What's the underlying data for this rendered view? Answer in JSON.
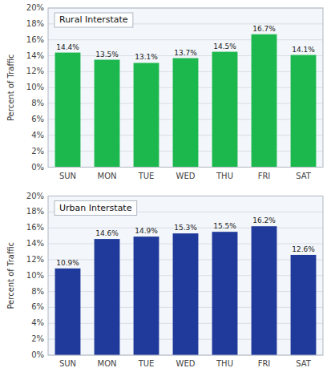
{
  "chart_data": [
    {
      "type": "bar",
      "title": "Rural Interstate",
      "categories": [
        "SUN",
        "MON",
        "TUE",
        "WED",
        "THU",
        "FRI",
        "SAT"
      ],
      "values": [
        14.4,
        13.5,
        13.1,
        13.7,
        14.5,
        16.7,
        14.1
      ],
      "value_labels": [
        "14.4%",
        "13.5%",
        "13.1%",
        "13.7%",
        "14.5%",
        "16.7%",
        "14.1%"
      ],
      "data_labels": true,
      "color": "#1CB84E",
      "ylabel": "Percent of Traffic",
      "ylim": [
        0,
        20
      ],
      "yticks": [
        {
          "value": 0,
          "label": "0%"
        },
        {
          "value": 2,
          "label": "2%"
        },
        {
          "value": 4,
          "label": "4%"
        },
        {
          "value": 6,
          "label": "6%"
        },
        {
          "value": 8,
          "label": "8%"
        },
        {
          "value": 10,
          "label": "10%"
        },
        {
          "value": 12,
          "label": "12%"
        },
        {
          "value": 14,
          "label": "14%"
        },
        {
          "value": 16,
          "label": "16%"
        },
        {
          "value": 18,
          "label": "18%"
        },
        {
          "value": 20,
          "label": "20%"
        }
      ],
      "grid": true
    },
    {
      "type": "bar",
      "title": "Urban Interstate",
      "categories": [
        "SUN",
        "MON",
        "TUE",
        "WED",
        "THU",
        "FRI",
        "SAT"
      ],
      "values": [
        10.9,
        14.6,
        14.9,
        15.3,
        15.5,
        16.2,
        12.6
      ],
      "value_labels": [
        "10.9%",
        "14.6%",
        "14.9%",
        "15.3%",
        "15.5%",
        "16.2%",
        "12.6%"
      ],
      "data_labels": true,
      "color": "#1F3A9A",
      "ylabel": "Percent of Traffic",
      "ylim": [
        0,
        20
      ],
      "yticks": [
        {
          "value": 0,
          "label": "0%"
        },
        {
          "value": 2,
          "label": "2%"
        },
        {
          "value": 4,
          "label": "4%"
        },
        {
          "value": 6,
          "label": "6%"
        },
        {
          "value": 8,
          "label": "8%"
        },
        {
          "value": 10,
          "label": "10%"
        },
        {
          "value": 12,
          "label": "12%"
        },
        {
          "value": 14,
          "label": "14%"
        },
        {
          "value": 16,
          "label": "16%"
        },
        {
          "value": 18,
          "label": "18%"
        },
        {
          "value": 20,
          "label": "20%"
        }
      ],
      "grid": true
    }
  ]
}
